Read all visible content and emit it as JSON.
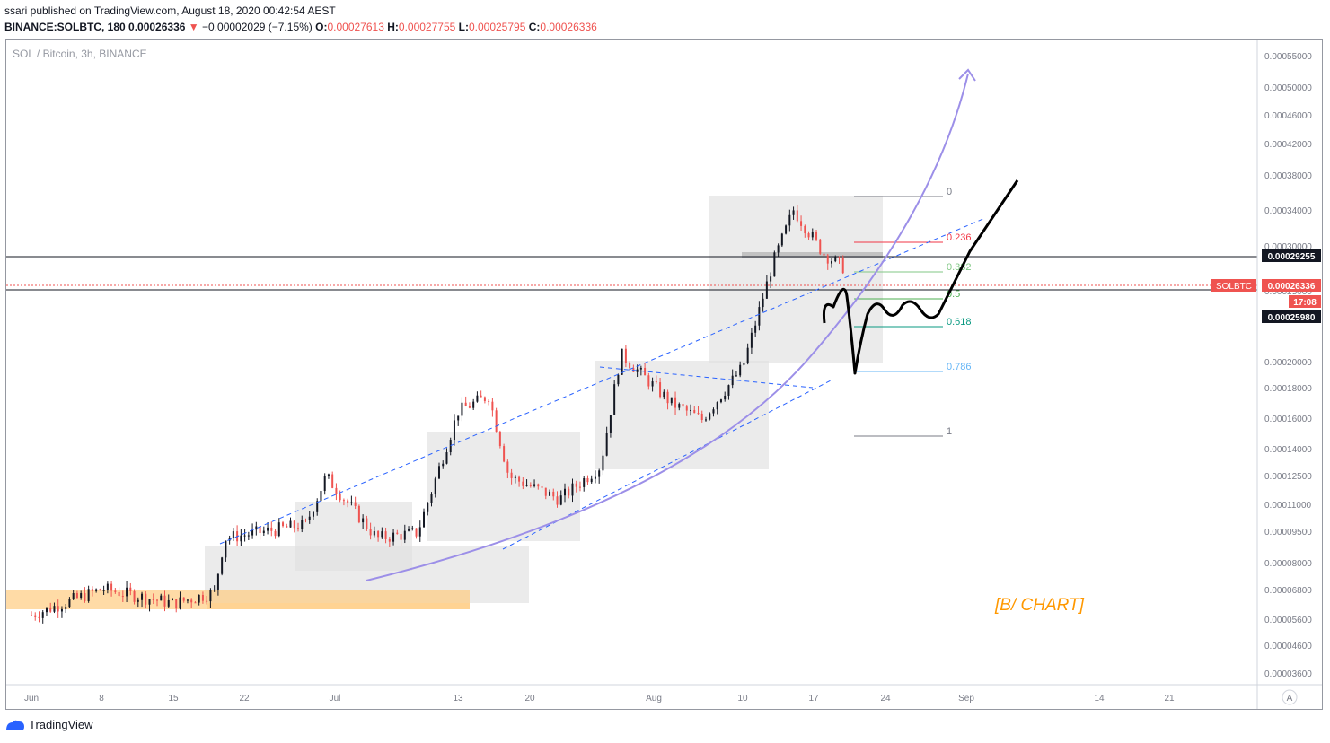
{
  "publish_line": "ssari published on TradingView.com, August 18, 2020 00:42:54 AEST",
  "ohlc": {
    "symbol": "BINANCE:SOLBTC, 180",
    "last": "0.00026336",
    "arrow": "▼",
    "change": "−0.00002029 (−7.15%)",
    "o_label": "O:",
    "o": "0.00027613",
    "h_label": "H:",
    "h": "0.00027755",
    "l_label": "L:",
    "l": "0.00025795",
    "c_label": "C:",
    "c": "0.00026336"
  },
  "chart_title": "SOL / Bitcoin, 3h, BINANCE",
  "watermark": "[B/ CHART]",
  "footer_brand": "TradingView",
  "auto_scale_label": "A",
  "price_tags": [
    {
      "text": "0.00029255",
      "dark": true
    },
    {
      "text": "0.00026336",
      "symbol": "SOLBTC",
      "red": true
    },
    {
      "text": "17:08",
      "red": true
    },
    {
      "text": "0.00025980",
      "dark": true
    }
  ],
  "fib_labels": [
    {
      "text": "0",
      "color": "#787b86"
    },
    {
      "text": "0.236",
      "color": "#f23645"
    },
    {
      "text": "0.382",
      "color": "#81c784"
    },
    {
      "text": "0.5",
      "color": "#4caf50"
    },
    {
      "text": "0.618",
      "color": "#089981"
    },
    {
      "text": "0.786",
      "color": "#64b5f6"
    },
    {
      "text": "1",
      "color": "#787b86"
    }
  ],
  "chart_data": {
    "type": "candlestick",
    "title": "SOL / Bitcoin, 3h, BINANCE",
    "x_ticks": [
      "Jun",
      "8",
      "15",
      "22",
      "Jul",
      "13",
      "20",
      "Aug",
      "10",
      "17",
      "24",
      "Sep",
      "14",
      "21"
    ],
    "y_ticks": [
      "0.00055000",
      "0.00050000",
      "0.00046000",
      "0.00042000",
      "0.00038000",
      "0.00034000",
      "0.00030000",
      "0.00025000",
      "0.00020000",
      "0.00018000",
      "0.00016000",
      "0.00014000",
      "0.00012500",
      "0.00011000",
      "0.00009500",
      "0.00008000",
      "0.00006800",
      "0.00005600",
      "0.00004600",
      "0.00003600"
    ],
    "y_scale": "log",
    "last_price": 0.00026336,
    "close_approx_path": [
      [
        "Jun",
        5.7e-05
      ],
      [
        "8",
        6.4e-05
      ],
      [
        "15",
        6e-05
      ],
      [
        "22",
        7.3e-05
      ],
      [
        "Jul",
        0.0001
      ],
      [
        "13",
        0.00014
      ],
      [
        "20",
        9.5e-05
      ],
      [
        "Aug",
        0.000135
      ],
      [
        "10",
        0.00028
      ],
      [
        "17",
        0.0002634
      ]
    ],
    "fib_retracement": {
      "high": 0.000355,
      "low": 0.00015,
      "levels": [
        0,
        0.236,
        0.382,
        0.5,
        0.618,
        0.786,
        1
      ]
    }
  },
  "colors": {
    "candle_up": "#131722",
    "candle_down": "#ef5350",
    "trend_dashed": "#2962ff",
    "curve": "#9c8fe8",
    "orange_zone": "#ffcc80",
    "box_fill": "#e0e0e0",
    "watermark": "#ff9800",
    "price_red": "#ef5350",
    "price_dark": "#131722"
  }
}
